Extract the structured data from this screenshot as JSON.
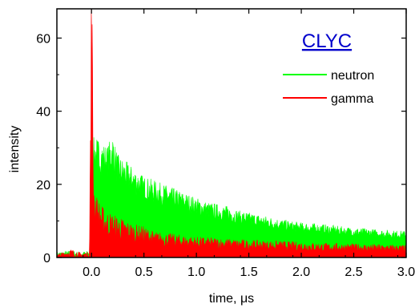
{
  "chart_data": {
    "type": "area",
    "title": "CLYC",
    "xlabel": "time, μs",
    "ylabel": "intensity",
    "xlim": [
      -0.33,
      3.0
    ],
    "ylim": [
      0,
      68
    ],
    "xticks": [
      0.0,
      0.5,
      1.0,
      1.5,
      2.0,
      2.5,
      3.0
    ],
    "xtick_labels": [
      "0.0",
      "0.5",
      "1.0",
      "1.5",
      "2.0",
      "2.5",
      "3.0"
    ],
    "yticks": [
      0,
      20,
      40,
      60
    ],
    "ytick_labels": [
      "0",
      "20",
      "40",
      "60"
    ],
    "legend_position": "top-right",
    "series": [
      {
        "name": "neutron",
        "color": "#00ff00",
        "x": [
          -0.33,
          -0.2,
          -0.1,
          -0.02,
          0.0,
          0.05,
          0.1,
          0.15,
          0.2,
          0.25,
          0.3,
          0.4,
          0.5,
          0.6,
          0.7,
          0.8,
          0.9,
          1.0,
          1.1,
          1.2,
          1.3,
          1.4,
          1.5,
          1.6,
          1.7,
          1.8,
          1.9,
          2.0,
          2.1,
          2.2,
          2.3,
          2.4,
          2.5,
          2.6,
          2.7,
          2.8,
          2.9,
          3.0
        ],
        "y": [
          1.0,
          1.2,
          1.0,
          1.2,
          28,
          28,
          27,
          26,
          29,
          24,
          23,
          21,
          19,
          18,
          17,
          16,
          15,
          14,
          13,
          12.5,
          12,
          11,
          10.5,
          10,
          9.5,
          9,
          8.5,
          8.2,
          8,
          7.8,
          7.5,
          7.2,
          7,
          6.8,
          6.6,
          6.4,
          6.3,
          6.2
        ]
      },
      {
        "name": "gamma",
        "color": "#ff0000",
        "x": [
          -0.33,
          -0.2,
          -0.1,
          -0.02,
          0.0,
          0.02,
          0.05,
          0.1,
          0.15,
          0.2,
          0.3,
          0.4,
          0.5,
          0.6,
          0.8,
          1.0,
          1.2,
          1.4,
          1.6,
          1.8,
          2.0,
          2.2,
          2.4,
          2.6,
          2.8,
          3.0
        ],
        "y": [
          0.5,
          1.5,
          0.8,
          1.0,
          64,
          16,
          12,
          10,
          9,
          8.5,
          7.5,
          6.5,
          6,
          5,
          4.5,
          4,
          3.8,
          3.5,
          3.3,
          3.2,
          3.0,
          2.8,
          2.7,
          2.6,
          2.5,
          2.4
        ]
      }
    ]
  }
}
